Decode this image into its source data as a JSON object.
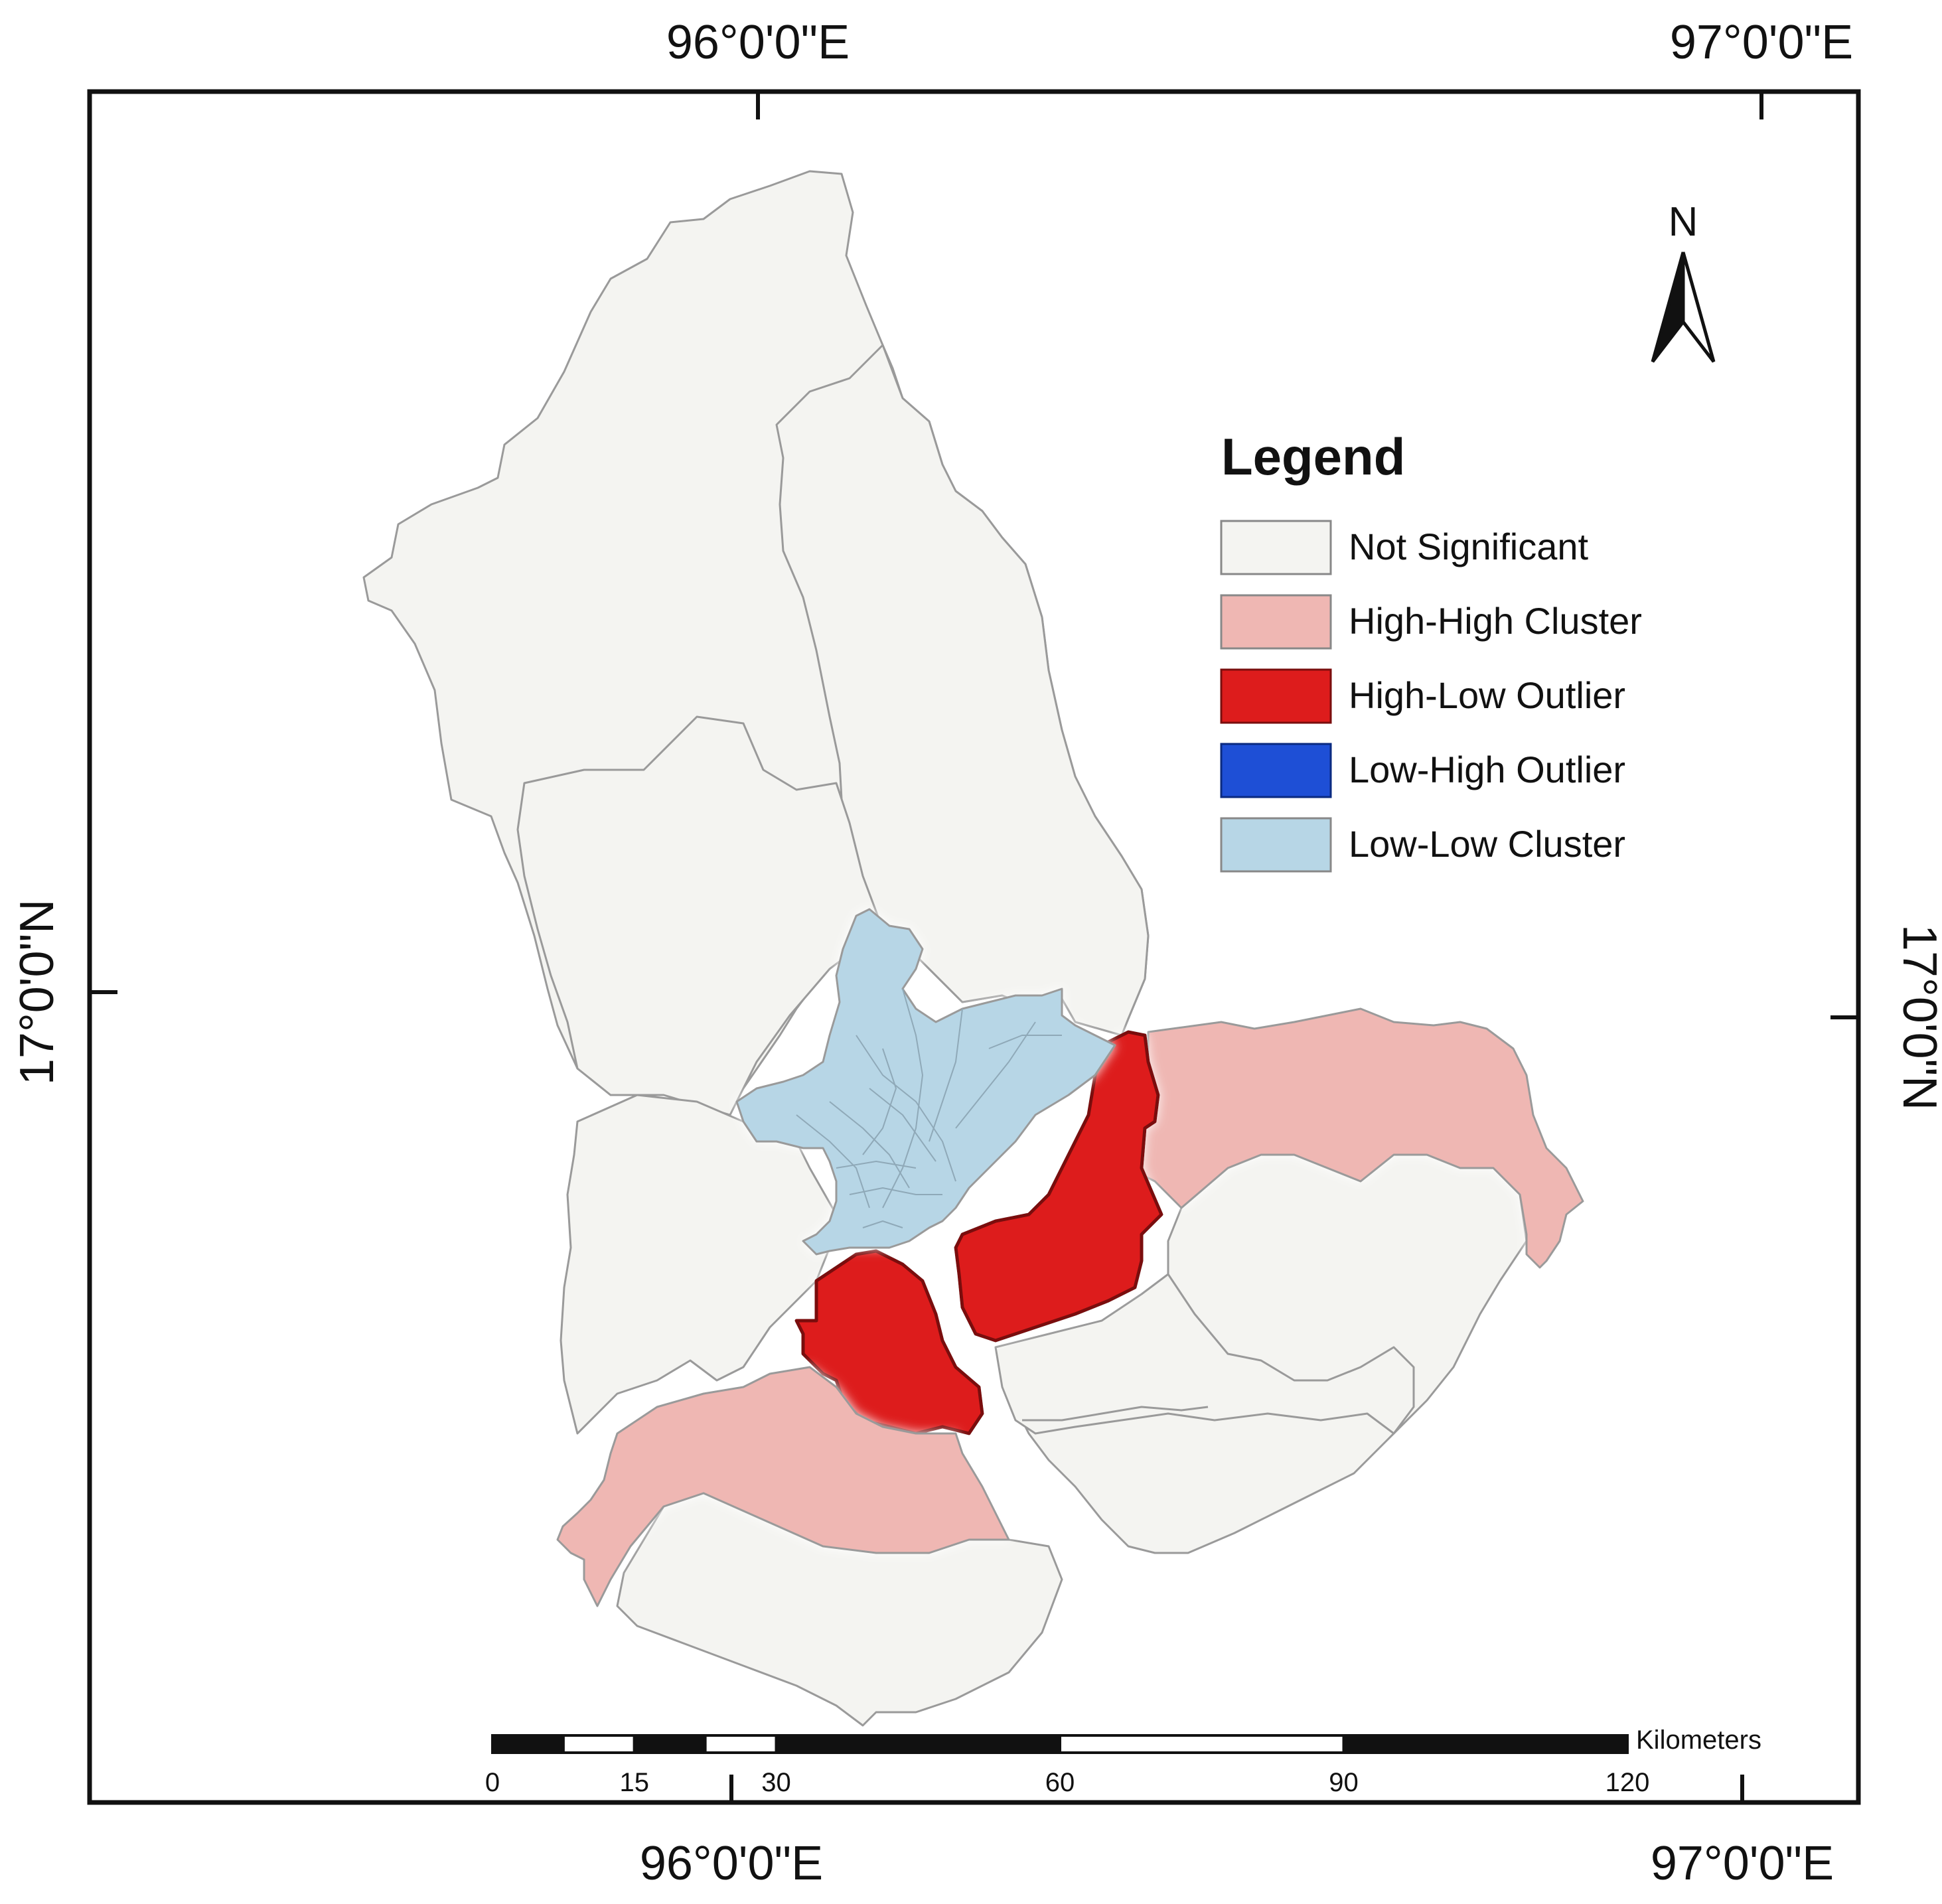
{
  "map": {
    "coordinates": {
      "top_left_lon": "96°0'0\"E",
      "top_right_lon": "97°0'0\"E",
      "bottom_left_lon": "96°0'0\"E",
      "bottom_right_lon": "97°0'0\"E",
      "left_lat": "17°0'0\"N",
      "right_lat": "17°0'0\"N"
    },
    "north_arrow": {
      "label": "N",
      "icon": "north-arrow-icon"
    },
    "legend": {
      "title": "Legend",
      "items": [
        {
          "label": "Not Significant",
          "color": "#f4f4f1"
        },
        {
          "label": "High-High Cluster",
          "color": "#efb7b3"
        },
        {
          "label": "High-Low Outlier",
          "color": "#dd1c1c"
        },
        {
          "label": "Low-High Outlier",
          "color": "#1e4fd6"
        },
        {
          "label": "Low-Low Cluster",
          "color": "#b7d6e6"
        }
      ]
    },
    "scale_bar": {
      "unit": "Kilometers",
      "ticks": [
        "0",
        "15",
        "30",
        "60",
        "90",
        "120"
      ]
    },
    "colors": {
      "boundary": "#9a9a9a",
      "frame": "#111111"
    }
  }
}
